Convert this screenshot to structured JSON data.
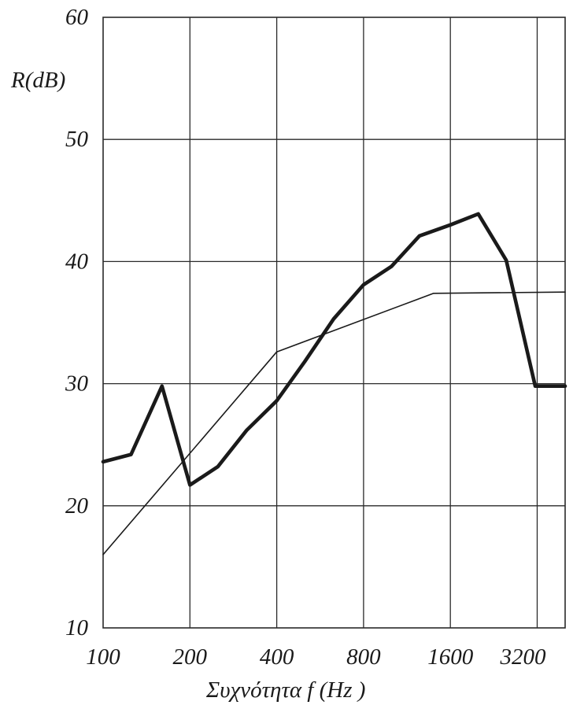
{
  "chart_data": {
    "type": "line",
    "xlabel": "Συχνότητα  f (Hz )",
    "ylabel": "R(dB)",
    "x_scale": "log2",
    "xlim": [
      100,
      4000
    ],
    "ylim": [
      10,
      60
    ],
    "x_ticks": [
      100,
      200,
      400,
      800,
      1600,
      3200
    ],
    "y_ticks": [
      10,
      20,
      30,
      40,
      50,
      60
    ],
    "x_tick_labels": [
      "100",
      "200",
      "400",
      "800",
      "1600",
      "3200"
    ],
    "y_tick_labels": [
      "10",
      "20",
      "30",
      "40",
      "50",
      "60"
    ],
    "grid": true,
    "series": [
      {
        "style": "thick",
        "color": "#1a1a1a",
        "x": [
          100,
          125,
          160,
          200,
          250,
          315,
          400,
          500,
          630,
          800,
          1000,
          1250,
          1600,
          2000,
          2500,
          3150,
          4000
        ],
        "y": [
          23.6,
          24.2,
          29.8,
          21.7,
          23.2,
          26.2,
          28.6,
          31.8,
          35.3,
          38.1,
          39.6,
          42.1,
          43.0,
          43.9,
          40.1,
          29.8,
          29.8
        ]
      },
      {
        "style": "thin",
        "color": "#1a1a1a",
        "x": [
          100,
          400,
          1400,
          4000
        ],
        "y": [
          16,
          32.6,
          37.4,
          37.5
        ]
      }
    ]
  }
}
